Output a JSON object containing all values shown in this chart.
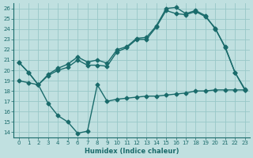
{
  "xlabel": "Humidex (Indice chaleur)",
  "bg_color": "#c0e0e0",
  "grid_color": "#98c8c8",
  "line_color": "#1a6b6b",
  "xlim": [
    -0.5,
    23.5
  ],
  "ylim": [
    13.5,
    26.5
  ],
  "yticks": [
    14,
    15,
    16,
    17,
    18,
    19,
    20,
    21,
    22,
    23,
    24,
    25,
    26
  ],
  "xticks": [
    0,
    1,
    2,
    3,
    4,
    5,
    6,
    7,
    8,
    9,
    10,
    11,
    12,
    13,
    14,
    15,
    16,
    17,
    18,
    19,
    20,
    21,
    22,
    23
  ],
  "line_dip_x": [
    0,
    1,
    2,
    3,
    4,
    5,
    6,
    7,
    8,
    9,
    10,
    11,
    12,
    13,
    14,
    15,
    16,
    17,
    18,
    19,
    20,
    21,
    22,
    23
  ],
  "line_dip_y": [
    19.0,
    18.8,
    18.6,
    16.8,
    15.6,
    15.0,
    13.9,
    14.1,
    18.6,
    17.0,
    17.2,
    17.3,
    17.4,
    17.5,
    17.5,
    17.6,
    17.7,
    17.8,
    18.0,
    18.0,
    18.1,
    18.1,
    18.1,
    18.1
  ],
  "line_mid_x": [
    0,
    1,
    2,
    3,
    4,
    5,
    6,
    7,
    8,
    9,
    10,
    11,
    12,
    13,
    14,
    15,
    16,
    17,
    18,
    19,
    20,
    21,
    22,
    23
  ],
  "line_mid_y": [
    20.8,
    19.8,
    18.6,
    19.5,
    20.0,
    20.3,
    21.0,
    20.5,
    20.5,
    20.4,
    21.8,
    22.2,
    23.0,
    23.0,
    24.2,
    25.8,
    25.5,
    25.4,
    25.7,
    25.2,
    24.1,
    22.2,
    19.8,
    18.1
  ],
  "line_top_x": [
    0,
    1,
    2,
    3,
    4,
    5,
    6,
    7,
    8,
    9,
    10,
    11,
    12,
    13,
    14,
    15,
    16,
    17,
    18,
    19,
    20,
    21,
    22,
    23
  ],
  "line_top_y": [
    20.8,
    19.8,
    18.6,
    19.6,
    20.2,
    20.6,
    21.3,
    20.8,
    21.0,
    20.7,
    22.0,
    22.3,
    23.1,
    23.2,
    24.3,
    26.0,
    26.1,
    25.5,
    25.8,
    25.3,
    24.0,
    22.3,
    19.8,
    18.2
  ]
}
